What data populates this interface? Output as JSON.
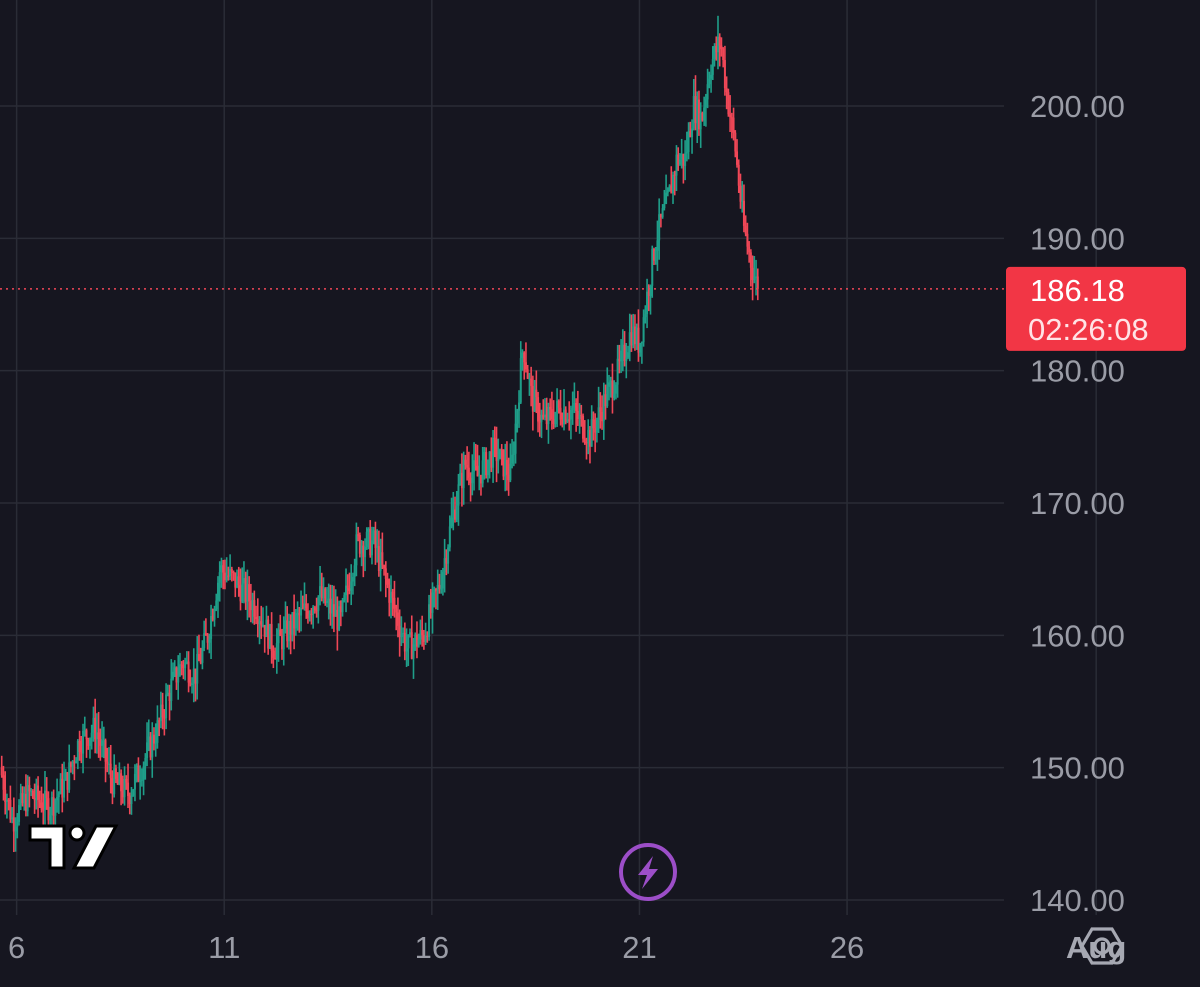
{
  "chart_data": {
    "type": "candlestick",
    "y_axis": {
      "ticks": [
        "140.00",
        "150.00",
        "160.00",
        "170.00",
        "180.00",
        "190.00",
        "200.00"
      ],
      "range": [
        139,
        207
      ]
    },
    "x_axis": {
      "ticks": [
        {
          "label": "6",
          "day": 6,
          "month": false
        },
        {
          "label": "11",
          "day": 11,
          "month": false
        },
        {
          "label": "16",
          "day": 16,
          "month": false
        },
        {
          "label": "21",
          "day": 21,
          "month": false
        },
        {
          "label": "26",
          "day": 26,
          "month": false
        },
        {
          "label": "Aug",
          "day": 32,
          "month": true
        }
      ],
      "range": [
        5.6,
        34.5
      ]
    },
    "last_price": {
      "value": 186.18,
      "label": "186.18",
      "countdown": "02:26:08"
    },
    "colors": {
      "background": "#161620",
      "grid": "#2a2c36",
      "up": "#1f9e89",
      "down": "#f04757",
      "axis_text": "#9a9ca6",
      "badge": "#f23645",
      "lightning": "#9c4ec8"
    },
    "anchors": [
      [
        5.6,
        150
      ],
      [
        5.9,
        146
      ],
      [
        6.3,
        148
      ],
      [
        6.8,
        147
      ],
      [
        7.2,
        149
      ],
      [
        7.5,
        152
      ],
      [
        7.9,
        153
      ],
      [
        8.3,
        149
      ],
      [
        8.7,
        148
      ],
      [
        9.0,
        150
      ],
      [
        9.4,
        153
      ],
      [
        9.7,
        156
      ],
      [
        10.0,
        158
      ],
      [
        10.3,
        157
      ],
      [
        10.6,
        160
      ],
      [
        10.9,
        165
      ],
      [
        11.3,
        164
      ],
      [
        11.8,
        162
      ],
      [
        12.2,
        159
      ],
      [
        12.7,
        161
      ],
      [
        13.3,
        163
      ],
      [
        13.8,
        161
      ],
      [
        14.2,
        167
      ],
      [
        14.6,
        167
      ],
      [
        15.0,
        163
      ],
      [
        15.4,
        159
      ],
      [
        15.8,
        160
      ],
      [
        16.2,
        164
      ],
      [
        16.5,
        169
      ],
      [
        16.8,
        173
      ],
      [
        17.1,
        172
      ],
      [
        17.5,
        174
      ],
      [
        17.9,
        172
      ],
      [
        18.2,
        182
      ],
      [
        18.4,
        178
      ],
      [
        18.7,
        176
      ],
      [
        19.0,
        177
      ],
      [
        19.4,
        177
      ],
      [
        19.8,
        175
      ],
      [
        20.2,
        178
      ],
      [
        20.5,
        180
      ],
      [
        20.8,
        183
      ],
      [
        21.0,
        182
      ],
      [
        21.2,
        186
      ],
      [
        21.4,
        190
      ],
      [
        21.7,
        193
      ],
      [
        21.9,
        196
      ],
      [
        22.1,
        196
      ],
      [
        22.3,
        200
      ],
      [
        22.5,
        199
      ],
      [
        22.7,
        203
      ],
      [
        22.95,
        205
      ],
      [
        23.1,
        201
      ],
      [
        23.3,
        197
      ],
      [
        23.5,
        191
      ],
      [
        23.7,
        188
      ],
      [
        23.85,
        186.18
      ]
    ]
  }
}
